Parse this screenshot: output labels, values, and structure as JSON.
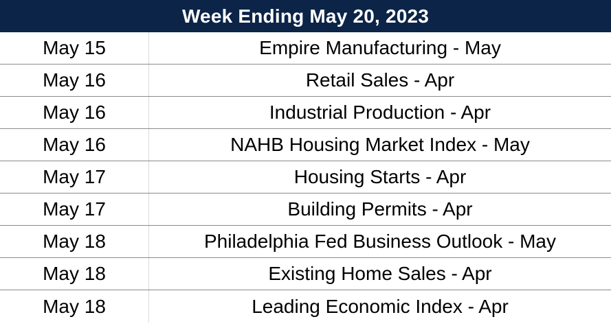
{
  "header": {
    "title": "Week Ending May 20, 2023"
  },
  "colors": {
    "header_background": "#0b2447",
    "header_text": "#ffffff",
    "row_divider": "#8a8a8a"
  },
  "rows": [
    {
      "date": "May 15",
      "event": "Empire Manufacturing - May"
    },
    {
      "date": "May 16",
      "event": "Retail Sales - Apr"
    },
    {
      "date": "May 16",
      "event": "Industrial Production - Apr"
    },
    {
      "date": "May 16",
      "event": "NAHB Housing Market Index - May"
    },
    {
      "date": "May 17",
      "event": "Housing Starts - Apr"
    },
    {
      "date": "May 17",
      "event": "Building Permits - Apr"
    },
    {
      "date": "May 18",
      "event": "Philadelphia Fed Business Outlook - May"
    },
    {
      "date": "May 18",
      "event": "Existing Home Sales - Apr"
    },
    {
      "date": "May 18",
      "event": "Leading Economic Index - Apr"
    }
  ]
}
